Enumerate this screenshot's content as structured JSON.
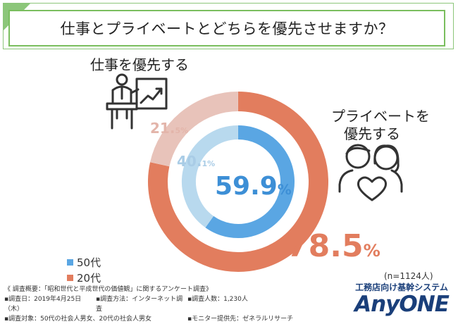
{
  "title": "仕事とプライベートとどちらを優先させますか？",
  "left_label": "仕事を優先する",
  "right_label_line1": "プライベートを",
  "right_label_line2": "優先する",
  "chart_data": {
    "type": "donut",
    "series": [
      {
        "name": "50代",
        "values": [
          59.9,
          40.1
        ],
        "colors": [
          "#5aa6e3",
          "#b8d9ee"
        ]
      },
      {
        "name": "20代",
        "values": [
          78.5,
          21.5
        ],
        "colors": [
          "#e27d5e",
          "#e8c3ba"
        ]
      }
    ],
    "categories": [
      "プライベートを優先する",
      "仕事を優先する"
    ],
    "labels": {
      "inner_private_main": "59.9",
      "inner_private_small": "%",
      "inner_work_main": "40.",
      "inner_work_small": "1%",
      "outer_private_main": "78.5",
      "outer_private_small": "%",
      "outer_work_main": "21.",
      "outer_work_small": "5%"
    }
  },
  "legend": {
    "item1": "50代",
    "item2": "20代",
    "color1": "#5aa6e3",
    "color2": "#e27d5e"
  },
  "sample_size": "(n=1124人)",
  "notes": {
    "line1": "《 調査概要：「昭和世代と平成世代の価値観」に関するアンケート調査》",
    "line2a": "▪調査日：2019年4月25日（木）",
    "line2b": "▪調査方法：インターネット調査",
    "line2c": "▪調査人数：1,230人",
    "line3a": "▪調査対象：50代の社会人男女、20代の社会人男女",
    "line3b": "▪モニター提供先：ゼネラルリサーチ"
  },
  "logo": {
    "sub": "工務店向け基幹システム",
    "main": "AnyONE"
  }
}
